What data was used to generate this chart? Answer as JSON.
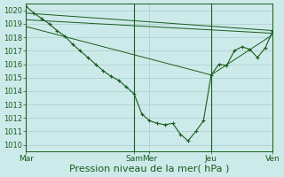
{
  "background_color": "#cceaea",
  "grid_color": "#aacccc",
  "line_color": "#1a5c1a",
  "xlabel": "Pression niveau de la mer( hPa )",
  "xlabel_fontsize": 8,
  "ylim": [
    1009.5,
    1020.5
  ],
  "yticks": [
    1010,
    1011,
    1012,
    1013,
    1014,
    1015,
    1016,
    1017,
    1018,
    1019,
    1020
  ],
  "xtick_labels": [
    "Mar",
    "Sam",
    "Mer",
    "Jeu",
    "Ven"
  ],
  "xtick_positions": [
    0,
    14,
    16,
    24,
    32
  ],
  "vlines": [
    0,
    14,
    24,
    32
  ],
  "series1_x": [
    0,
    1,
    2,
    3,
    4,
    5,
    6,
    7,
    8,
    9,
    10,
    11,
    12,
    13,
    14,
    15,
    16,
    17,
    18,
    19,
    20,
    21,
    22,
    23,
    24,
    25,
    26,
    27,
    28,
    29,
    30,
    31,
    32
  ],
  "series1_y": [
    1020.3,
    1019.8,
    1019.4,
    1019.0,
    1018.5,
    1018.1,
    1017.5,
    1017.0,
    1016.5,
    1016.0,
    1015.5,
    1015.1,
    1014.8,
    1014.3,
    1013.8,
    1012.3,
    1011.8,
    1011.6,
    1011.5,
    1011.6,
    1010.8,
    1010.3,
    1011.0,
    1011.8,
    1015.2,
    1016.0,
    1015.9,
    1017.0,
    1017.3,
    1017.1,
    1016.5,
    1017.2,
    1018.5
  ],
  "series2_x": [
    0,
    32
  ],
  "series2_y": [
    1019.8,
    1018.5
  ],
  "series3_x": [
    0,
    32
  ],
  "series3_y": [
    1019.3,
    1018.3
  ],
  "series4_x": [
    0,
    24,
    32
  ],
  "series4_y": [
    1018.8,
    1015.2,
    1018.2
  ]
}
